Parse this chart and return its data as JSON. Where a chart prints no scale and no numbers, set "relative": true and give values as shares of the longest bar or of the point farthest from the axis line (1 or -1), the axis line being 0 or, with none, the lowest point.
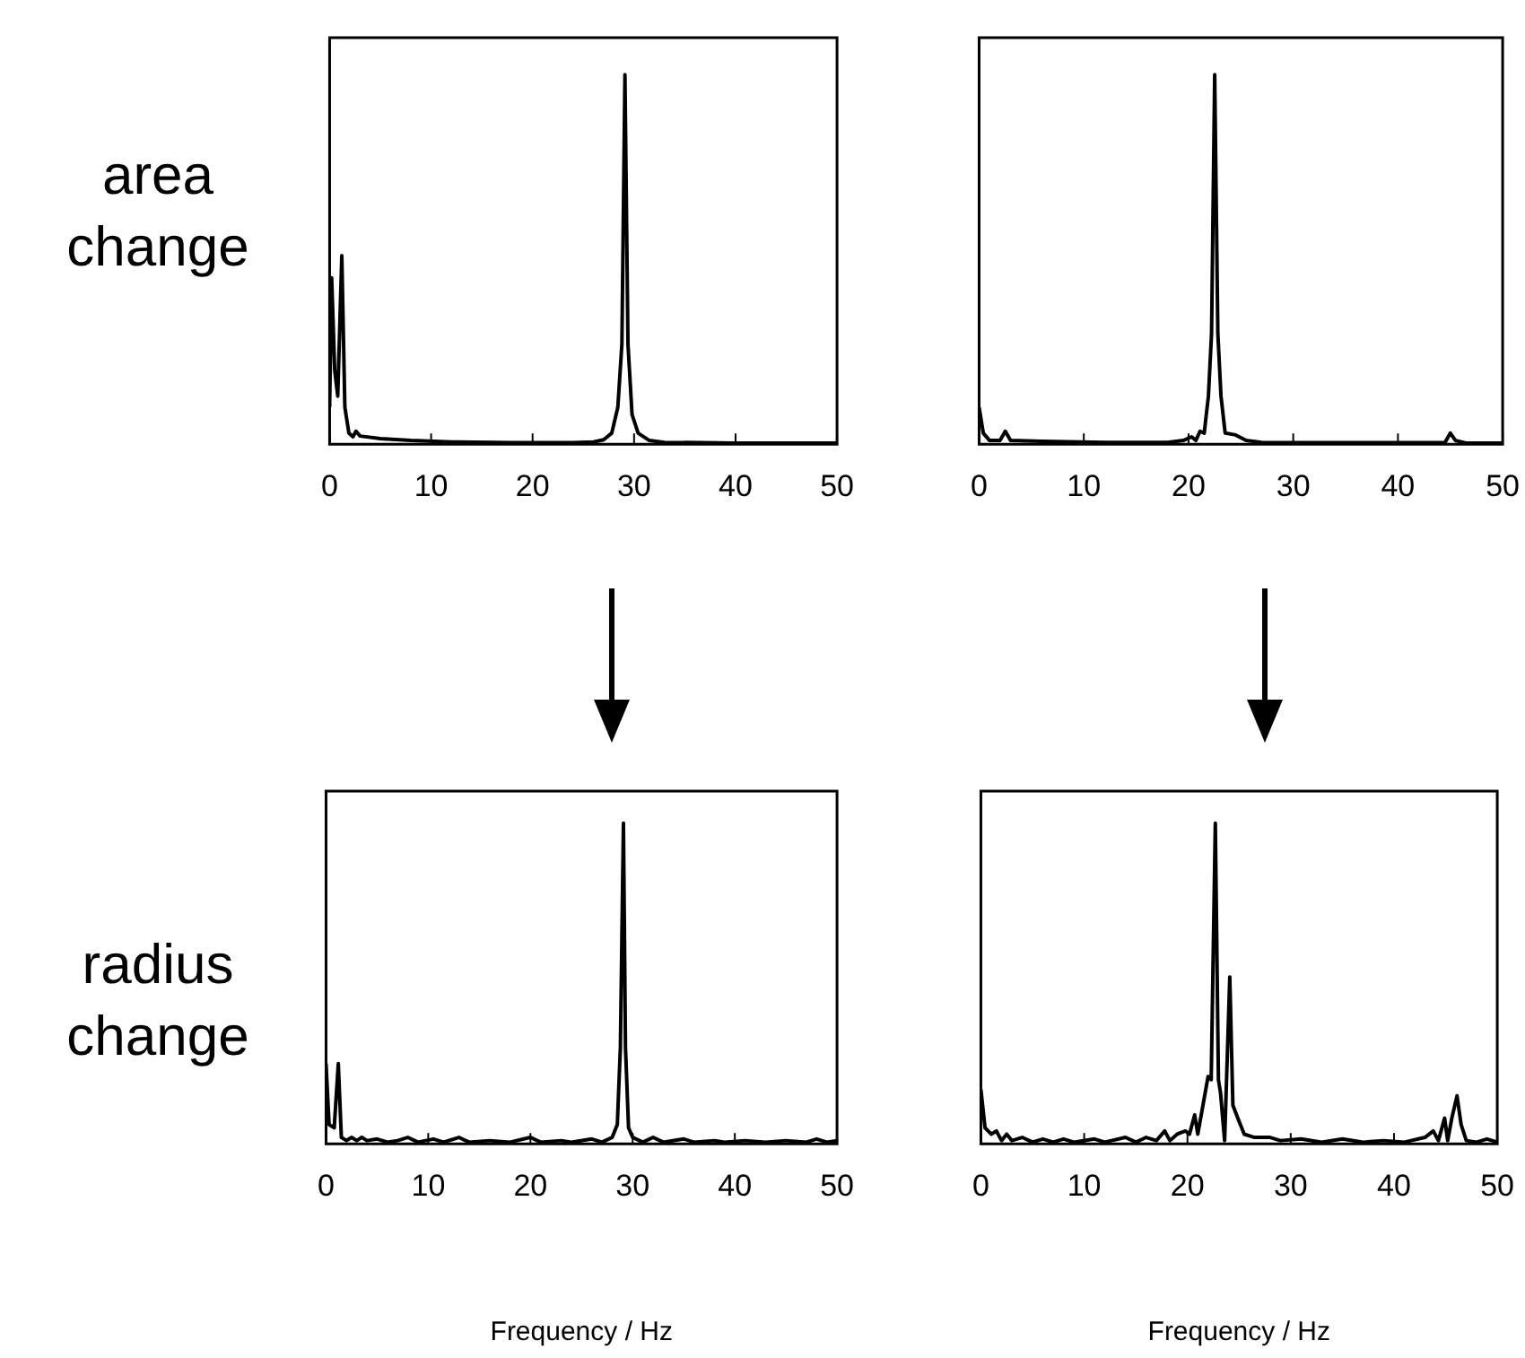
{
  "chart_data": [
    {
      "type": "line",
      "ylabel": "area change",
      "relative": true,
      "marker": "none",
      "xlim": [
        0,
        50
      ],
      "xticks": [
        0,
        10,
        20,
        30,
        40,
        50
      ],
      "x": [
        0,
        0.2,
        0.5,
        0.8,
        1.2,
        1.5,
        1.9,
        2.3,
        2.6,
        3,
        5,
        8,
        12,
        18,
        24,
        26,
        27,
        27.8,
        28.4,
        28.8,
        29.1,
        29.4,
        29.8,
        30.4,
        31.5,
        33,
        40,
        50
      ],
      "series": [
        {
          "color": "#000000",
          "values": [
            0.1,
            0.45,
            0.2,
            0.13,
            0.51,
            0.1,
            0.03,
            0.02,
            0.035,
            0.022,
            0.015,
            0.01,
            0.006,
            0.004,
            0.004,
            0.006,
            0.012,
            0.03,
            0.1,
            0.27,
            1,
            0.27,
            0.08,
            0.03,
            0.01,
            0.005,
            0.003,
            0.003
          ]
        }
      ]
    },
    {
      "type": "line",
      "relative": true,
      "marker": "none",
      "xlim": [
        0,
        50
      ],
      "xticks": [
        0,
        10,
        20,
        30,
        40,
        50
      ],
      "x": [
        0,
        0.4,
        1,
        2,
        2.5,
        3,
        6,
        12,
        18,
        19.5,
        20.3,
        20.7,
        21.1,
        21.5,
        21.9,
        22.2,
        22.5,
        22.8,
        23.1,
        23.5,
        24.5,
        25.5,
        27,
        35,
        44.5,
        45,
        45.5,
        46.5,
        50
      ],
      "series": [
        {
          "color": "#000000",
          "values": [
            0.1,
            0.03,
            0.01,
            0.01,
            0.035,
            0.01,
            0.008,
            0.005,
            0.005,
            0.01,
            0.02,
            0.01,
            0.035,
            0.03,
            0.13,
            0.3,
            1,
            0.3,
            0.13,
            0.03,
            0.025,
            0.01,
            0.005,
            0.004,
            0.005,
            0.03,
            0.01,
            0.003,
            0.003
          ]
        }
      ]
    },
    {
      "type": "line",
      "ylabel": "radius change",
      "xlabel": "Frequency / Hz",
      "relative": true,
      "marker": "none",
      "xlim": [
        0,
        50
      ],
      "xticks": [
        0,
        10,
        20,
        30,
        40,
        50
      ],
      "x": [
        0,
        0.3,
        0.8,
        1.2,
        1.5,
        2,
        2.5,
        3,
        3.5,
        4,
        5,
        6,
        7,
        8,
        9,
        10.5,
        11.5,
        13,
        14,
        16,
        18,
        20,
        21,
        23,
        24,
        26,
        27,
        28,
        28.5,
        28.8,
        29.1,
        29.3,
        29.6,
        30,
        31,
        32,
        33,
        35,
        36,
        38,
        39,
        41,
        43,
        45,
        47,
        48,
        49,
        50
      ],
      "series": [
        {
          "color": "#000000",
          "values": [
            0.25,
            0.06,
            0.05,
            0.25,
            0.02,
            0.01,
            0.02,
            0.01,
            0.02,
            0.01,
            0.015,
            0.005,
            0.01,
            0.02,
            0.005,
            0.015,
            0.005,
            0.02,
            0.005,
            0.01,
            0.005,
            0.02,
            0.005,
            0.01,
            0.005,
            0.015,
            0.005,
            0.02,
            0.06,
            0.3,
            1,
            0.3,
            0.05,
            0.02,
            0.005,
            0.02,
            0.005,
            0.015,
            0.005,
            0.01,
            0.005,
            0.01,
            0.005,
            0.01,
            0.005,
            0.015,
            0.005,
            0.01
          ]
        }
      ]
    },
    {
      "type": "line",
      "xlabel": "Frequency / Hz",
      "relative": true,
      "marker": "none",
      "xlim": [
        0,
        50
      ],
      "xticks": [
        0,
        10,
        20,
        30,
        40,
        50
      ],
      "x": [
        0,
        0.4,
        1,
        1.5,
        2,
        2.5,
        3,
        4,
        5,
        6,
        7,
        8,
        9,
        11,
        12,
        14,
        15,
        16,
        17,
        17.8,
        18.3,
        19,
        19.8,
        20.2,
        20.7,
        21,
        21.5,
        22,
        22.3,
        22.7,
        23,
        23.2,
        23.6,
        24.1,
        24.4,
        25,
        25.5,
        26.5,
        28,
        29,
        31,
        33,
        35,
        37,
        39,
        41,
        43,
        43.8,
        44.3,
        44.9,
        45.2,
        45.6,
        46.1,
        46.5,
        47,
        48,
        49,
        50
      ],
      "series": [
        {
          "color": "#000000",
          "values": [
            0.17,
            0.05,
            0.03,
            0.04,
            0.01,
            0.03,
            0.01,
            0.02,
            0.005,
            0.015,
            0.005,
            0.015,
            0.005,
            0.015,
            0.005,
            0.02,
            0.005,
            0.02,
            0.01,
            0.04,
            0.01,
            0.03,
            0.04,
            0.03,
            0.09,
            0.03,
            0.12,
            0.21,
            0.2,
            1,
            0.2,
            0.16,
            0.01,
            0.52,
            0.12,
            0.07,
            0.03,
            0.02,
            0.02,
            0.01,
            0.015,
            0.005,
            0.015,
            0.005,
            0.01,
            0.005,
            0.02,
            0.04,
            0.01,
            0.08,
            0.01,
            0.08,
            0.15,
            0.06,
            0.01,
            0.005,
            0.015,
            0.005
          ]
        }
      ]
    }
  ]
}
